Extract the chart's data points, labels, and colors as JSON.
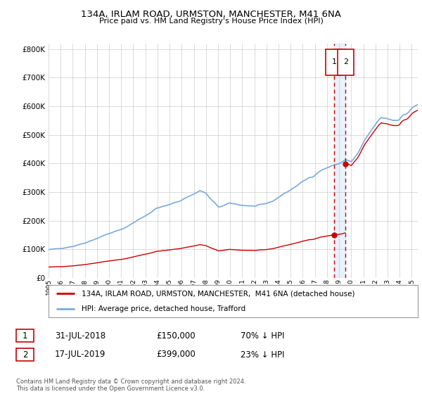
{
  "title": "134A, IRLAM ROAD, URMSTON, MANCHESTER, M41 6NA",
  "subtitle": "Price paid vs. HM Land Registry's House Price Index (HPI)",
  "hpi_color": "#7aaadd",
  "sale_color": "#cc0000",
  "vline_color": "#cc0000",
  "vband_color": "#ddeeff",
  "ylim": [
    0,
    820000
  ],
  "yticks": [
    0,
    100000,
    200000,
    300000,
    400000,
    500000,
    600000,
    700000,
    800000
  ],
  "xlim_min": 1995.0,
  "xlim_max": 2025.5,
  "sale1_year": 2018.58,
  "sale1_price": 150000,
  "sale2_year": 2019.54,
  "sale2_price": 399000,
  "legend_red_label": "134A, IRLAM ROAD, URMSTON, MANCHESTER,  M41 6NA (detached house)",
  "legend_blue_label": "HPI: Average price, detached house, Trafford",
  "table_rows": [
    {
      "num": "1",
      "date": "31-JUL-2018",
      "price": "£150,000",
      "pct": "70% ↓ HPI"
    },
    {
      "num": "2",
      "date": "17-JUL-2019",
      "price": "£399,000",
      "pct": "23% ↓ HPI"
    }
  ],
  "footer": "Contains HM Land Registry data © Crown copyright and database right 2024.\nThis data is licensed under the Open Government Licence v3.0.",
  "bg_color": "#ffffff",
  "grid_color": "#cccccc"
}
